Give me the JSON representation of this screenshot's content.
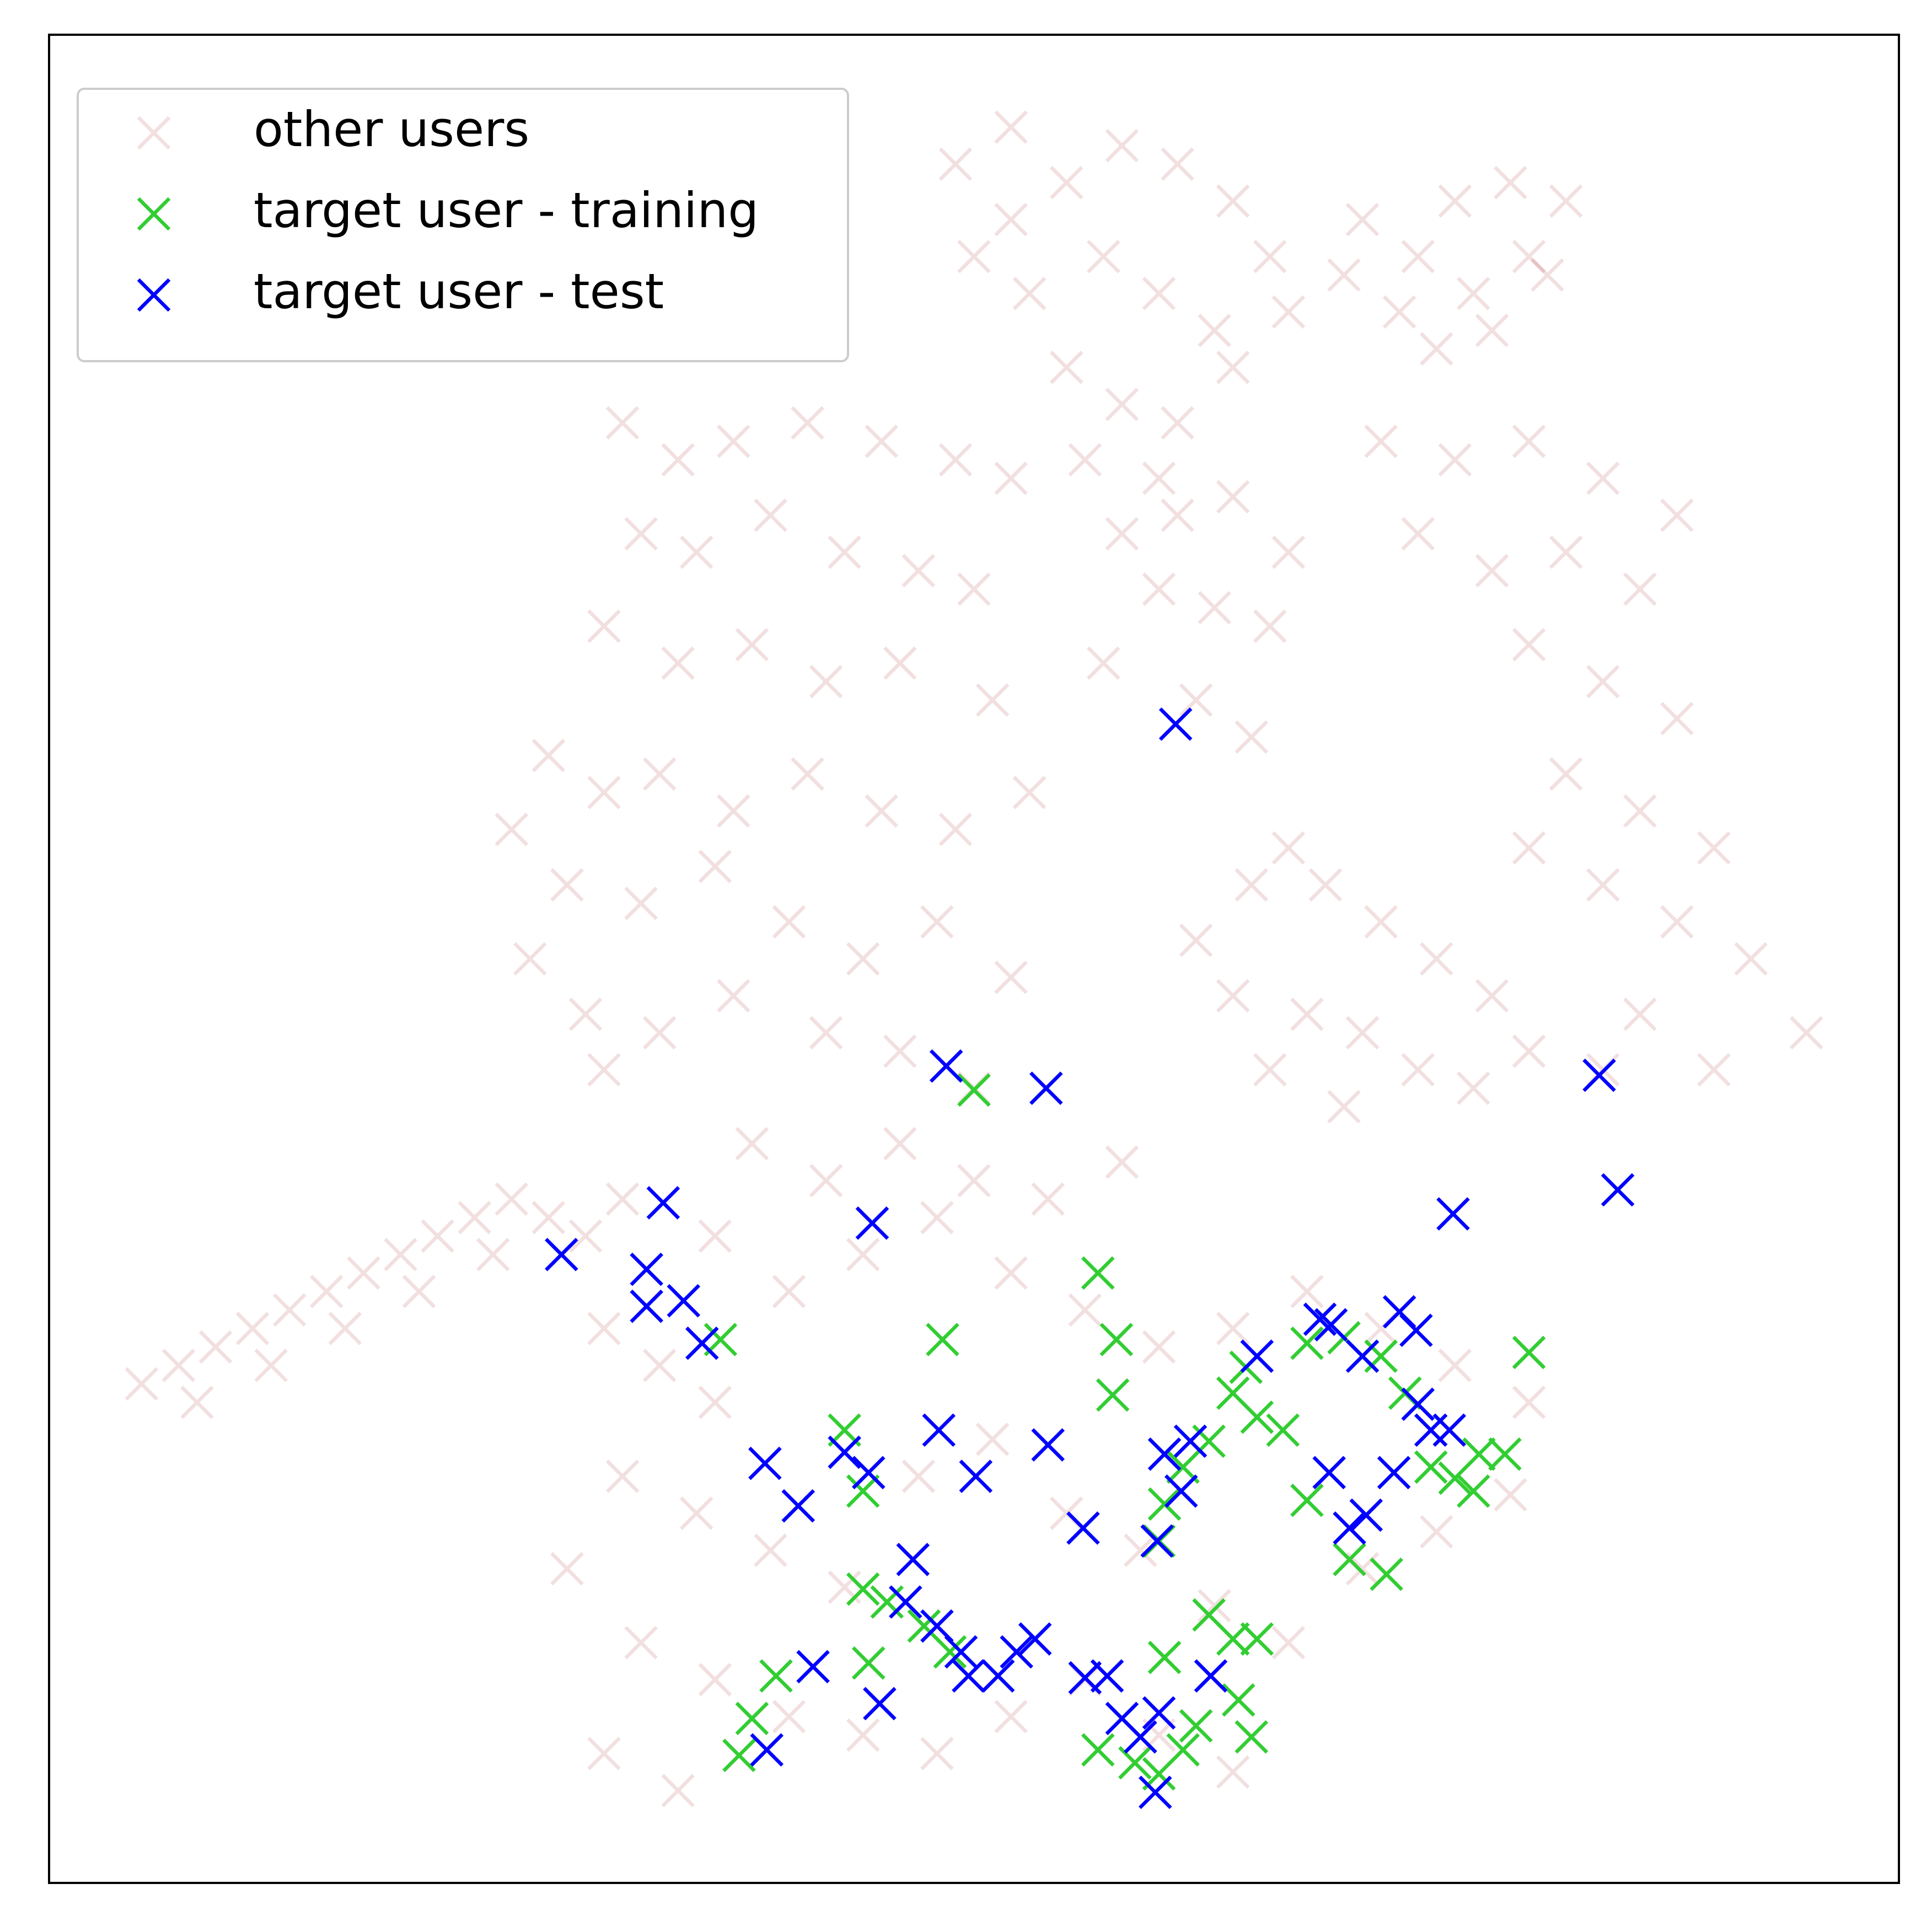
{
  "chart_data": {
    "type": "scatter",
    "xlim": [
      0,
      100
    ],
    "ylim": [
      0,
      100
    ],
    "grid": false,
    "legend": "upper left",
    "series": [
      {
        "name": "other users",
        "color": "#a52a2a",
        "alpha": 0.15,
        "x": [
          49,
          52,
          55,
          58,
          61,
          64,
          66,
          50,
          53,
          57,
          60,
          63,
          55,
          58,
          61,
          64,
          67,
          56,
          60,
          52,
          71,
          74,
          76,
          79,
          82,
          80,
          77,
          73,
          75,
          78,
          81,
          70,
          31,
          34,
          37,
          41,
          45,
          49,
          52,
          32,
          35,
          39,
          43,
          47,
          50,
          30,
          34,
          38,
          42,
          46,
          51,
          27,
          30,
          33,
          37,
          41,
          45,
          49,
          53,
          25,
          28,
          32,
          36,
          40,
          44,
          48,
          52,
          26,
          29,
          33,
          37,
          42,
          46,
          50,
          30,
          58,
          61,
          64,
          67,
          60,
          63,
          66,
          57,
          62,
          65,
          72,
          76,
          80,
          84,
          88,
          74,
          78,
          82,
          86,
          80,
          84,
          88,
          82,
          86,
          90,
          80,
          84,
          88,
          92,
          95,
          86,
          90,
          84,
          62,
          65,
          67,
          69,
          72,
          75,
          78,
          64,
          68,
          71,
          74,
          66,
          77,
          80,
          70,
          5,
          7,
          9,
          11,
          13,
          15,
          17,
          19,
          21,
          23,
          25,
          27,
          29,
          31,
          8,
          12,
          16,
          20,
          24,
          30,
          33,
          36,
          40,
          44,
          48,
          52,
          56,
          60,
          64,
          68,
          72,
          76,
          80,
          31,
          35,
          39,
          43,
          47,
          51,
          55,
          59,
          63,
          67,
          71,
          75,
          79,
          32,
          36,
          40,
          44,
          48,
          52,
          56,
          60,
          64,
          30,
          34,
          38,
          42,
          46,
          50,
          54,
          58,
          36,
          28
        ],
        "y": [
          93,
          95,
          92,
          94,
          93,
          91,
          88,
          88,
          86,
          88,
          86,
          84,
          82,
          80,
          79,
          82,
          85,
          77,
          76,
          90,
          90,
          88,
          91,
          92,
          91,
          88,
          86,
          85,
          83,
          84,
          87,
          87,
          79,
          77,
          78,
          79,
          78,
          77,
          76,
          73,
          72,
          74,
          72,
          71,
          70,
          68,
          66,
          67,
          65,
          66,
          64,
          61,
          59,
          60,
          58,
          60,
          58,
          57,
          59,
          57,
          54,
          53,
          55,
          52,
          50,
          52,
          49,
          50,
          47,
          46,
          48,
          46,
          45,
          43,
          44,
          73,
          74,
          75,
          72,
          70,
          69,
          68,
          66,
          64,
          62,
          78,
          77,
          78,
          76,
          74,
          73,
          71,
          72,
          70,
          67,
          65,
          63,
          60,
          58,
          56,
          56,
          54,
          52,
          50,
          46,
          47,
          44,
          44,
          51,
          54,
          56,
          54,
          52,
          50,
          48,
          48,
          47,
          46,
          44,
          44,
          43,
          45,
          42,
          27,
          28,
          29,
          30,
          31,
          32,
          33,
          34,
          35,
          36,
          37,
          36,
          35,
          37,
          26,
          28,
          30,
          32,
          34,
          30,
          28,
          26,
          32,
          34,
          36,
          33,
          31,
          29,
          30,
          32,
          30,
          28,
          26,
          22,
          20,
          18,
          16,
          22,
          24,
          20,
          18,
          15,
          13,
          17,
          19,
          21,
          13,
          11,
          9,
          8,
          7,
          9,
          11,
          8,
          6,
          7,
          5,
          40,
          38,
          40,
          38,
          37,
          39,
          35,
          17
        ]
      },
      {
        "name": "target user - training",
        "color": "#32cd32",
        "alpha": 1,
        "x": [
          56.7,
          57.7,
          48.3,
          57.5,
          80,
          50,
          36.3,
          43,
          44,
          68,
          70.3,
          72.3,
          78.7,
          76,
          74.7,
          77,
          64,
          65.3,
          66.7,
          64.7,
          62.7,
          61.3,
          60.3,
          60,
          68,
          70,
          72,
          73.3,
          44,
          45.3,
          47.3,
          48.7,
          44.3,
          39.3,
          38,
          37.3,
          62.7,
          64,
          65.3,
          60.3,
          64.3,
          65,
          61.3,
          60,
          58.7,
          56.7,
          62,
          77.3
        ],
        "y": [
          33,
          29.4,
          29.4,
          26.4,
          28.7,
          42.9,
          29.4,
          24.5,
          21.2,
          20.7,
          17.5,
          16.7,
          23.2,
          21.9,
          22.5,
          21.2,
          26.5,
          25.2,
          24.5,
          27.9,
          23.9,
          22.5,
          20.5,
          18.5,
          29.2,
          29.5,
          28.5,
          26.5,
          15.9,
          15.2,
          13.9,
          12.5,
          11.9,
          11.2,
          8.9,
          6.9,
          14.5,
          13.2,
          13.2,
          12.2,
          9.9,
          7.9,
          7.2,
          5.9,
          6.5,
          7.2,
          8.5,
          23.2
        ]
      },
      {
        "name": "target user - test",
        "color": "#0000ff",
        "alpha": 1,
        "x": [
          60.9,
          48.5,
          53.9,
          83.8,
          84.8,
          75.9,
          33.2,
          44.5,
          27.7,
          32.3,
          32.3,
          34.3,
          35.3,
          65.3,
          68.7,
          69.3,
          71,
          73,
          73.9,
          74,
          74.7,
          75.7,
          72.7,
          69.2,
          71.2,
          70.3,
          60.3,
          61.7,
          61.2,
          59.9,
          55.9,
          54,
          48.1,
          50.1,
          38.7,
          40.5,
          43,
          44.3,
          46.7,
          46.3,
          48,
          49.3,
          49.7,
          51.3,
          52.3,
          53.3,
          41.3,
          44.9,
          38.8,
          56,
          57.2,
          58,
          59,
          60,
          59.8,
          62.8
        ],
        "y": [
          62.7,
          44.2,
          43,
          43.7,
          37.5,
          36.2,
          36.8,
          35.7,
          34,
          33.2,
          31.2,
          31.5,
          29.2,
          28.5,
          30.5,
          30.2,
          28.5,
          30.9,
          29.9,
          25.9,
          24.5,
          24.5,
          22.2,
          22.2,
          19.9,
          19.2,
          23.2,
          23.9,
          21.2,
          18.5,
          19.2,
          23.7,
          24.5,
          22,
          22.7,
          20.4,
          23.3,
          22.2,
          17.5,
          15.2,
          13.9,
          12.5,
          11.2,
          11.2,
          12.5,
          13.2,
          11.7,
          9.7,
          7.2,
          11.1,
          11.2,
          8.9,
          7.9,
          9.2,
          4.9,
          11.2
        ]
      }
    ]
  }
}
